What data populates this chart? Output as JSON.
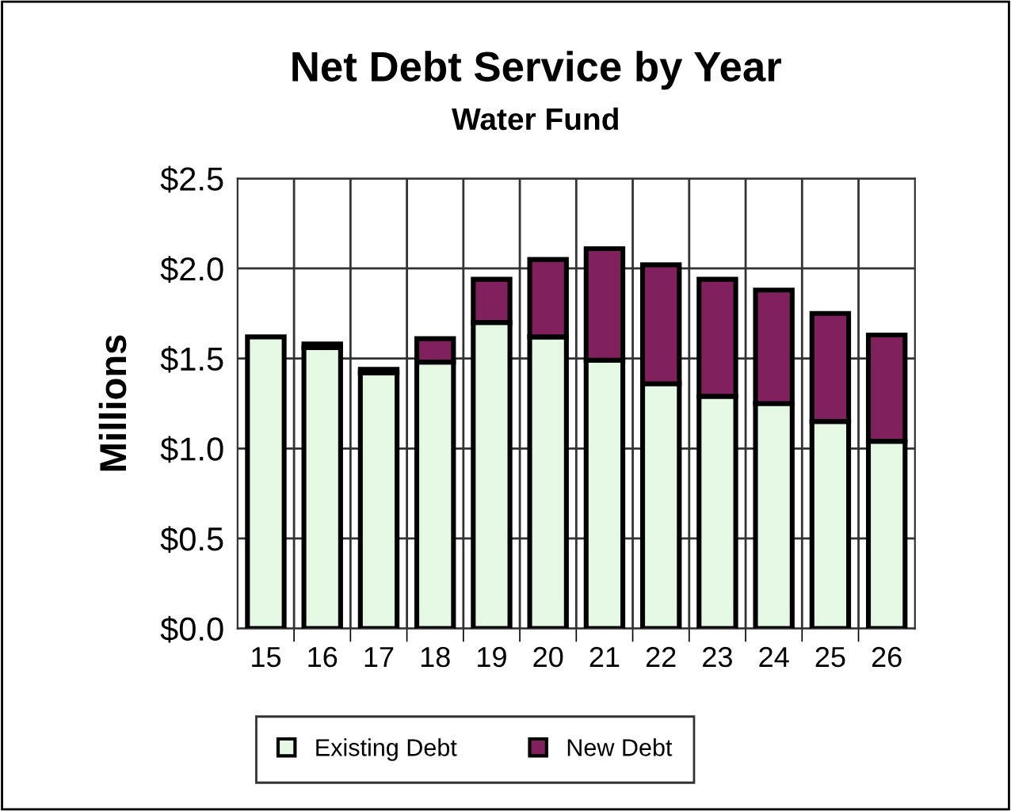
{
  "chart_data": {
    "type": "bar",
    "title": "Net Debt Service by Year",
    "subtitle": "Water Fund",
    "ylabel": "Millions",
    "stacked": true,
    "categories": [
      "15",
      "16",
      "17",
      "18",
      "19",
      "20",
      "21",
      "22",
      "23",
      "24",
      "25",
      "26"
    ],
    "series": [
      {
        "name": "Existing Debt",
        "color": "#e4f8e4",
        "values": [
          1.62,
          1.56,
          1.42,
          1.48,
          1.7,
          1.62,
          1.49,
          1.36,
          1.29,
          1.25,
          1.15,
          1.04
        ]
      },
      {
        "name": "New Debt",
        "color": "#80205c",
        "values": [
          null,
          0.02,
          0.02,
          0.13,
          0.24,
          0.43,
          0.62,
          0.66,
          0.65,
          0.63,
          0.6,
          0.59
        ]
      }
    ],
    "ylim": [
      0,
      2.5
    ],
    "yticks": [
      {
        "value": 0,
        "label": "$0.0"
      },
      {
        "value": 0.5,
        "label": "$0.5"
      },
      {
        "value": 1,
        "label": "$1.0"
      },
      {
        "value": 1.5,
        "label": "$1.5"
      },
      {
        "value": 2,
        "label": "$2.0"
      },
      {
        "value": 2.5,
        "label": "$2.5"
      }
    ],
    "grid": true,
    "legend": "bottom"
  }
}
